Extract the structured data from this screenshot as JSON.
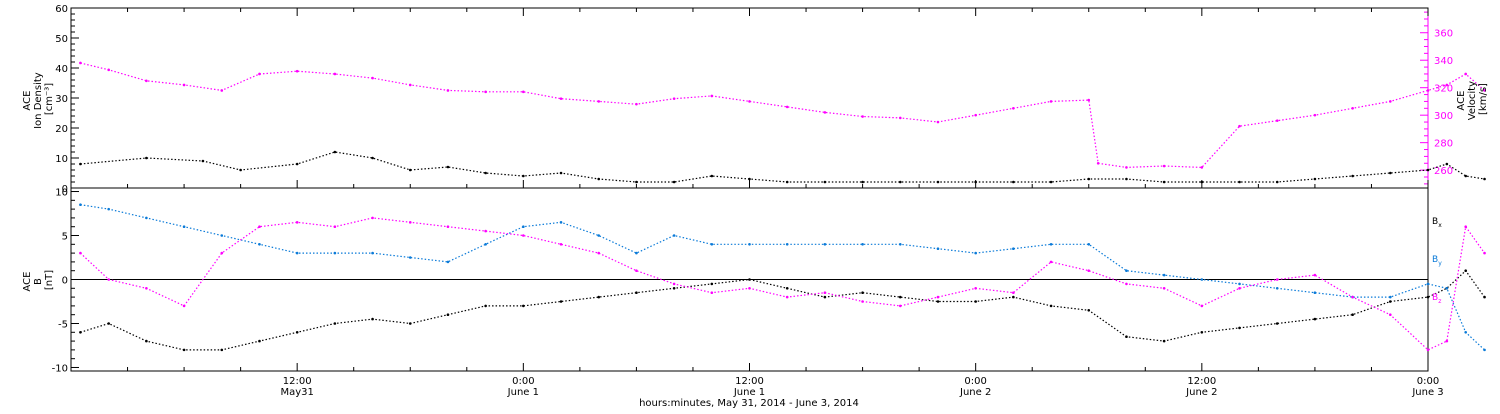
{
  "chart_data": {
    "type": "scatter",
    "xlabel": "hours:minutes, May 31, 2014 - June  3, 2014",
    "x_range_hours": [
      -12,
      60
    ],
    "time_ticks": [
      {
        "hour": 0,
        "time": "12:00",
        "date": "May31"
      },
      {
        "hour": 12,
        "time": "0:00",
        "date": "June 1"
      },
      {
        "hour": 24,
        "time": "12:00",
        "date": "June 1"
      },
      {
        "hour": 36,
        "time": "0:00",
        "date": "June 2"
      },
      {
        "hour": 48,
        "time": "12:00",
        "date": "June 2"
      },
      {
        "hour": 60,
        "time": "0:00",
        "date": "June 3"
      }
    ],
    "colors": {
      "black": "#000000",
      "magenta": "#ff00ff",
      "blue": "#0a7ad8"
    },
    "panels": [
      {
        "id": "plasma",
        "left_axis": {
          "label_lines": [
            "ACE",
            "Ion Density",
            "[cm⁻³]"
          ],
          "range": [
            0,
            60
          ],
          "ticks": [
            0,
            10,
            20,
            30,
            40,
            50,
            60
          ],
          "color": "#000000"
        },
        "right_axis": {
          "label_lines": [
            "ACE",
            "Velocity",
            "[km/s]"
          ],
          "range": [
            247,
            378
          ],
          "ticks": [
            260,
            280,
            300,
            320,
            340,
            360
          ],
          "color": "#ff00ff"
        },
        "series": [
          {
            "name": "Ion Density",
            "axis": "left",
            "color": "#000000",
            "x": [
              -11.5,
              -8,
              -5,
              -3,
              0,
              2,
              4,
              6,
              8,
              10,
              12,
              14,
              16,
              18,
              20,
              22,
              24,
              26,
              28,
              30,
              32,
              34,
              36,
              38,
              40,
              42,
              44,
              46,
              48,
              50,
              52,
              54,
              56,
              58,
              60,
              61,
              62,
              63
            ],
            "y": [
              8,
              10,
              9,
              6,
              8,
              12,
              10,
              6,
              7,
              5,
              4,
              5,
              3,
              2,
              2,
              4,
              3,
              2,
              2,
              2,
              2,
              2,
              2,
              2,
              2,
              3,
              3,
              2,
              2,
              2,
              2,
              3,
              4,
              5,
              6,
              8,
              4,
              3
            ]
          },
          {
            "name": "Velocity",
            "axis": "right",
            "color": "#ff00ff",
            "x": [
              -11.5,
              -10,
              -8,
              -6,
              -4,
              -2,
              0,
              2,
              4,
              6,
              8,
              10,
              12,
              14,
              16,
              18,
              20,
              22,
              24,
              26,
              28,
              30,
              32,
              34,
              36,
              38,
              40,
              42,
              42.5,
              44,
              46,
              48,
              50,
              52,
              54,
              56,
              58,
              60,
              61,
              62,
              63
            ],
            "y": [
              338,
              333,
              325,
              322,
              318,
              330,
              332,
              330,
              327,
              322,
              318,
              317,
              317,
              312,
              310,
              308,
              312,
              314,
              310,
              306,
              302,
              299,
              298,
              295,
              300,
              305,
              310,
              311,
              265,
              262,
              263,
              262,
              292,
              296,
              300,
              305,
              310,
              318,
              322,
              330,
              318
            ]
          }
        ]
      },
      {
        "id": "imf",
        "left_axis": {
          "label_lines": [
            "ACE",
            "B",
            "[nT]"
          ],
          "range": [
            -10.4,
            10.4
          ],
          "ticks": [
            -10,
            -5,
            0,
            5,
            10
          ],
          "color": "#000000"
        },
        "zero_line": true,
        "series": [
          {
            "name": "Bx",
            "color": "#000000",
            "x": [
              -11.5,
              -10,
              -8,
              -6,
              -4,
              -2,
              0,
              2,
              4,
              6,
              8,
              10,
              12,
              14,
              16,
              18,
              20,
              22,
              24,
              26,
              28,
              30,
              32,
              34,
              36,
              38,
              40,
              42,
              44,
              46,
              48,
              50,
              52,
              54,
              56,
              58,
              60,
              61,
              62,
              63
            ],
            "y": [
              -6,
              -5,
              -7,
              -8,
              -8,
              -7,
              -6,
              -5,
              -4.5,
              -5,
              -4,
              -3,
              -3,
              -2.5,
              -2,
              -1.5,
              -1,
              -0.5,
              0,
              -1,
              -2,
              -1.5,
              -2,
              -2.5,
              -2.5,
              -2,
              -3,
              -3.5,
              -6.5,
              -7,
              -6,
              -5.5,
              -5,
              -4.5,
              -4,
              -2.5,
              -2,
              -1,
              1,
              -2
            ]
          },
          {
            "name": "By",
            "color": "#0a7ad8",
            "x": [
              -11.5,
              -10,
              -8,
              -6,
              -4,
              -2,
              0,
              2,
              4,
              6,
              8,
              10,
              12,
              14,
              16,
              18,
              20,
              22,
              24,
              26,
              28,
              30,
              32,
              34,
              36,
              38,
              40,
              42,
              44,
              46,
              48,
              50,
              52,
              54,
              56,
              58,
              60,
              61,
              62,
              63
            ],
            "y": [
              8.5,
              8,
              7,
              6,
              5,
              4,
              3,
              3,
              3,
              2.5,
              2,
              4,
              6,
              6.5,
              5,
              3,
              5,
              4,
              4,
              4,
              4,
              4,
              4,
              3.5,
              3,
              3.5,
              4,
              4,
              1,
              0.5,
              0,
              -0.5,
              -1,
              -1.5,
              -2,
              -2,
              -0.5,
              -1,
              -6,
              -8
            ]
          },
          {
            "name": "Bz",
            "color": "#ff00ff",
            "x": [
              -11.5,
              -10,
              -8,
              -6,
              -4,
              -2,
              0,
              2,
              4,
              6,
              8,
              10,
              12,
              14,
              16,
              18,
              20,
              22,
              24,
              26,
              28,
              30,
              32,
              34,
              36,
              38,
              40,
              42,
              44,
              46,
              48,
              50,
              52,
              54,
              56,
              58,
              60,
              61,
              62,
              63
            ],
            "y": [
              3,
              0,
              -1,
              -3,
              3,
              6,
              6.5,
              6,
              7,
              6.5,
              6,
              5.5,
              5,
              4,
              3,
              1,
              -0.5,
              -1.5,
              -1,
              -2,
              -1.5,
              -2.5,
              -3,
              -2,
              -1,
              -1.5,
              2,
              1,
              -0.5,
              -1,
              -3,
              -1,
              0,
              0.5,
              -2,
              -4,
              -8,
              -7,
              6,
              3
            ]
          }
        ],
        "legend": [
          "B",
          "B",
          "B"
        ],
        "legend_subscripts": [
          "x",
          "y",
          "z"
        ]
      }
    ]
  }
}
